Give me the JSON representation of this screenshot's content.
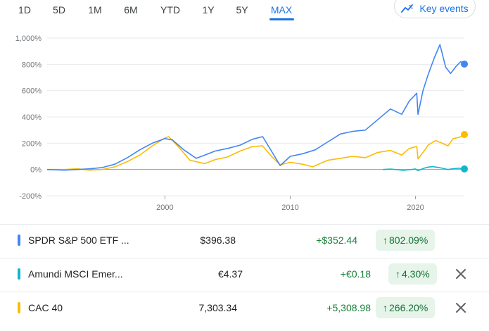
{
  "range_tabs": [
    "1D",
    "5D",
    "1M",
    "6M",
    "YTD",
    "1Y",
    "5Y",
    "MAX"
  ],
  "active_range": "MAX",
  "key_events_label": "Key events",
  "chart_data": {
    "type": "line",
    "title": "",
    "xlabel": "",
    "ylabel": "",
    "x_ticks": [
      "2000",
      "2010",
      "2020"
    ],
    "y_ticks": [
      "1,000%",
      "800%",
      "600%",
      "400%",
      "200%",
      "0%",
      "-200%"
    ],
    "ylim": [
      -200,
      1000
    ],
    "xlim": [
      1990.6,
      2023.9
    ],
    "grid": "horizontal",
    "baseline": 0,
    "series": [
      {
        "name": "SPDR S&P 500 ETF",
        "color": "#4285f4",
        "x": [
          1990.6,
          1992,
          1993,
          1994,
          1995,
          1996,
          1997,
          1998,
          1999,
          2000,
          2000.6,
          2001.5,
          2002.5,
          2003.2,
          2004,
          2005,
          2006,
          2007,
          2007.8,
          2008.5,
          2009.2,
          2010,
          2011,
          2012,
          2013,
          2014,
          2015,
          2016,
          2017,
          2018,
          2018.9,
          2019.5,
          2020.1,
          2020.2,
          2020.6,
          2021,
          2021.5,
          2021.95,
          2022.4,
          2022.8,
          2023.2,
          2023.6,
          2023.9
        ],
        "values": [
          0,
          -5,
          0,
          5,
          15,
          40,
          90,
          150,
          200,
          235,
          225,
          150,
          85,
          110,
          140,
          160,
          185,
          230,
          250,
          140,
          30,
          100,
          120,
          150,
          210,
          270,
          290,
          300,
          380,
          460,
          420,
          520,
          580,
          420,
          600,
          720,
          850,
          950,
          780,
          730,
          780,
          820,
          802
        ]
      },
      {
        "name": "Amundi MSCI Emerging Markets",
        "color": "#12b5cb",
        "x": [
          2017.4,
          2018,
          2018.6,
          2019,
          2019.5,
          2020,
          2020.2,
          2020.7,
          2021,
          2021.4,
          2022,
          2022.6,
          2023,
          2023.5,
          2023.9
        ],
        "values": [
          0,
          3,
          -2,
          -6,
          -2,
          4,
          -8,
          10,
          18,
          22,
          12,
          0,
          6,
          10,
          4.3
        ]
      },
      {
        "name": "CAC 40",
        "color": "#fbbc04",
        "x": [
          1990.6,
          1992,
          1993,
          1994,
          1995,
          1996,
          1997,
          1998,
          1999,
          2000,
          2000.3,
          2001.2,
          2002,
          2003.2,
          2004,
          2005,
          2006,
          2007,
          2007.8,
          2008.5,
          2009.2,
          2010,
          2011,
          2011.8,
          2012.5,
          2013,
          2014,
          2015,
          2016,
          2017,
          2018,
          2018.9,
          2019.5,
          2020.1,
          2020.2,
          2020.8,
          2021,
          2021.6,
          2022,
          2022.6,
          2023,
          2023.5,
          2023.9
        ],
        "values": [
          0,
          0,
          5,
          -5,
          0,
          20,
          60,
          110,
          180,
          240,
          250,
          160,
          70,
          45,
          75,
          95,
          140,
          175,
          180,
          100,
          35,
          55,
          40,
          20,
          50,
          70,
          85,
          100,
          90,
          130,
          145,
          110,
          160,
          175,
          80,
          155,
          185,
          220,
          205,
          180,
          235,
          245,
          266
        ]
      }
    ]
  },
  "rows": [
    {
      "name": "SPDR S&P 500 ETF ...",
      "color": "#4285f4",
      "price": "$396.38",
      "change": "+$352.44",
      "percent": "802.09%",
      "arrow": "↑",
      "removable": false
    },
    {
      "name": "Amundi MSCI Emer...",
      "color": "#12b5cb",
      "price": "€4.37",
      "change": "+€0.18",
      "percent": "4.30%",
      "arrow": "↑",
      "removable": true
    },
    {
      "name": "CAC 40",
      "color": "#fbbc04",
      "price": "7,303.34",
      "change": "+5,308.98",
      "percent": "266.20%",
      "arrow": "↑",
      "removable": true
    }
  ],
  "icons": {
    "key_events": "key-events-chart-icon",
    "remove": "close-icon"
  }
}
